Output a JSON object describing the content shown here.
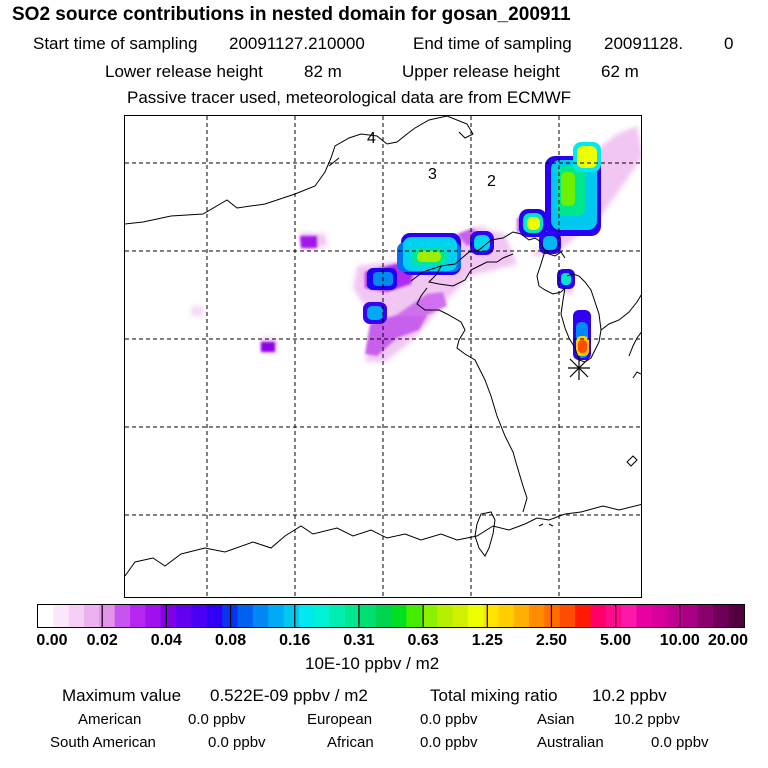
{
  "title": "SO2 source contributions in nested domain for gosan_200911",
  "sampling": {
    "start_label": "Start time of sampling",
    "start_value": "20091127.210000",
    "end_label": "End time of sampling",
    "end_value": "20091128.",
    "end_suffix": "0"
  },
  "release": {
    "lower_label": "Lower release height",
    "lower_value": "82 m",
    "upper_label": "Upper release height",
    "upper_value": "62 m"
  },
  "subtitle": "Passive tracer used, meteorological data are from ECMWF",
  "map": {
    "region_labels": [
      "4",
      "3",
      "2"
    ],
    "receptor_marker": "star-icon"
  },
  "colorbar": {
    "tick_labels": [
      "0.00",
      "0.02",
      "0.04",
      "0.08",
      "0.16",
      "0.31",
      "0.63",
      "1.25",
      "2.50",
      "5.00",
      "10.00",
      "20.00"
    ],
    "colors": [
      "#ffffff",
      "#fbe8fb",
      "#f5cff5",
      "#ecb1ee",
      "#e493ea",
      "#c953f0",
      "#b726f0",
      "#a010ee",
      "#8100e8",
      "#6400f0",
      "#4b00f5",
      "#3000f5",
      "#0a35f0",
      "#0060f0",
      "#0088f3",
      "#00aaf5",
      "#00c8ef",
      "#00e8f0",
      "#00f2d6",
      "#00eeb2",
      "#00e88e",
      "#00e070",
      "#00d350",
      "#00e020",
      "#44ec00",
      "#8cf000",
      "#b4f000",
      "#d0f000",
      "#eeff00",
      "#ffe400",
      "#ffce00",
      "#ffb000",
      "#ff8c00",
      "#ff6c00",
      "#ff4c00",
      "#ff1a00",
      "#ff006a",
      "#ff0c8c",
      "#ff16aa",
      "#e800a0",
      "#d8009a",
      "#c00090",
      "#aa0088",
      "#8a006e",
      "#6e0058",
      "#54003e"
    ],
    "unit": "10E-10 ppbv / m2"
  },
  "summary": {
    "max_label": "Maximum value",
    "max_value": "0.522E-09 ppbv / m2",
    "total_label": "Total mixing ratio",
    "total_value": "10.2 ppbv",
    "regions": [
      {
        "name": "American",
        "value": "0.0 ppbv"
      },
      {
        "name": "European",
        "value": "0.0 ppbv"
      },
      {
        "name": "Asian",
        "value": "10.2 ppbv"
      },
      {
        "name": "South American",
        "value": "0.0 ppbv"
      },
      {
        "name": "African",
        "value": "0.0 ppbv"
      },
      {
        "name": "Australian",
        "value": "0.0 ppbv"
      }
    ]
  }
}
